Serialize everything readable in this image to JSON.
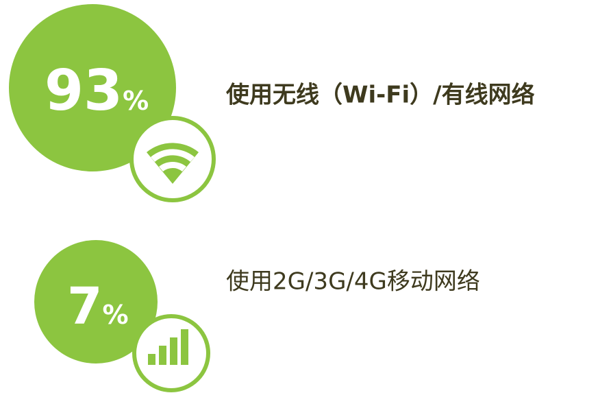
{
  "items": [
    {
      "value": 93,
      "unit": "%",
      "label": "使用无线（Wi-Fi）/有线网络"
    },
    {
      "value": 7,
      "unit": "%",
      "label": "使用2G/3G/4G移动网络"
    }
  ]
}
